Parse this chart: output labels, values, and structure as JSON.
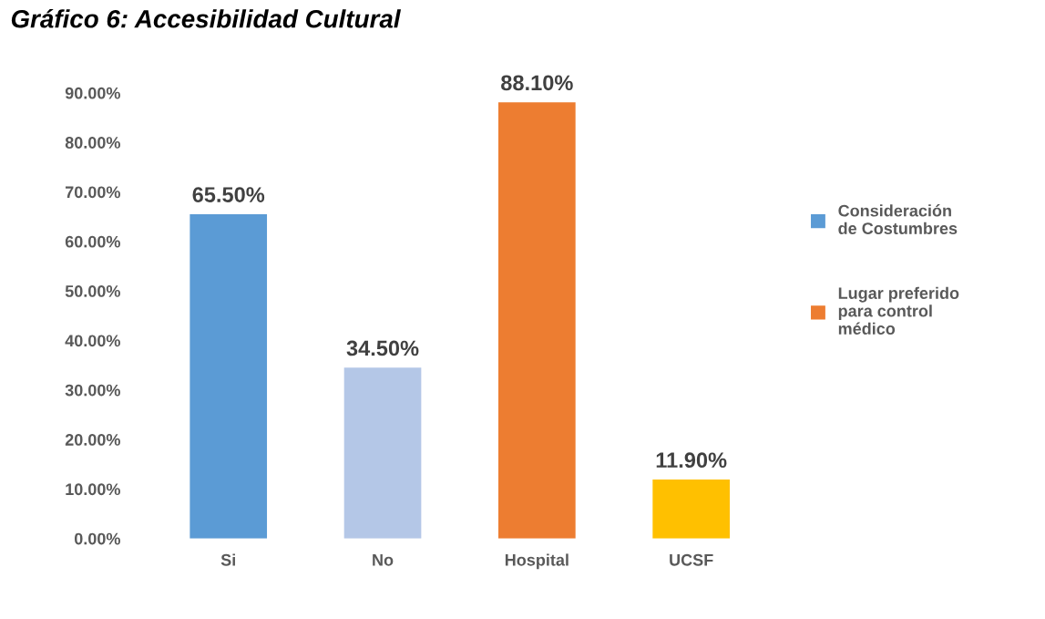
{
  "chart_data": {
    "type": "bar",
    "title": "Gráfico 6: Accesibilidad Cultural",
    "categories": [
      "Si",
      "No",
      "Hospital",
      "UCSF"
    ],
    "series": [
      {
        "name": "Consideración de Costumbres",
        "color": "#5b9bd5",
        "colors": [
          "#5b9bd5",
          "#b4c7e7",
          null,
          null
        ],
        "values": [
          65.5,
          34.5,
          null,
          null
        ],
        "value_labels": [
          "65.50%",
          "34.50%",
          null,
          null
        ]
      },
      {
        "name": "Lugar preferido para control médico",
        "color": "#ed7d31",
        "colors": [
          null,
          null,
          "#ed7d31",
          "#ffc000"
        ],
        "values": [
          null,
          null,
          88.1,
          11.9
        ],
        "value_labels": [
          null,
          null,
          "88.10%",
          "11.90%"
        ]
      }
    ],
    "ylim": [
      0,
      90
    ],
    "yticks": [
      {
        "value": 0,
        "label": "0.00%"
      },
      {
        "value": 10,
        "label": "10.00%"
      },
      {
        "value": 20,
        "label": "20.00%"
      },
      {
        "value": 30,
        "label": "30.00%"
      },
      {
        "value": 40,
        "label": "40.00%"
      },
      {
        "value": 50,
        "label": "50.00%"
      },
      {
        "value": 60,
        "label": "60.00%"
      },
      {
        "value": 70,
        "label": "70.00%"
      },
      {
        "value": 80,
        "label": "80.00%"
      },
      {
        "value": 90,
        "label": "90.00%"
      }
    ],
    "grid": false,
    "legend": "right"
  }
}
